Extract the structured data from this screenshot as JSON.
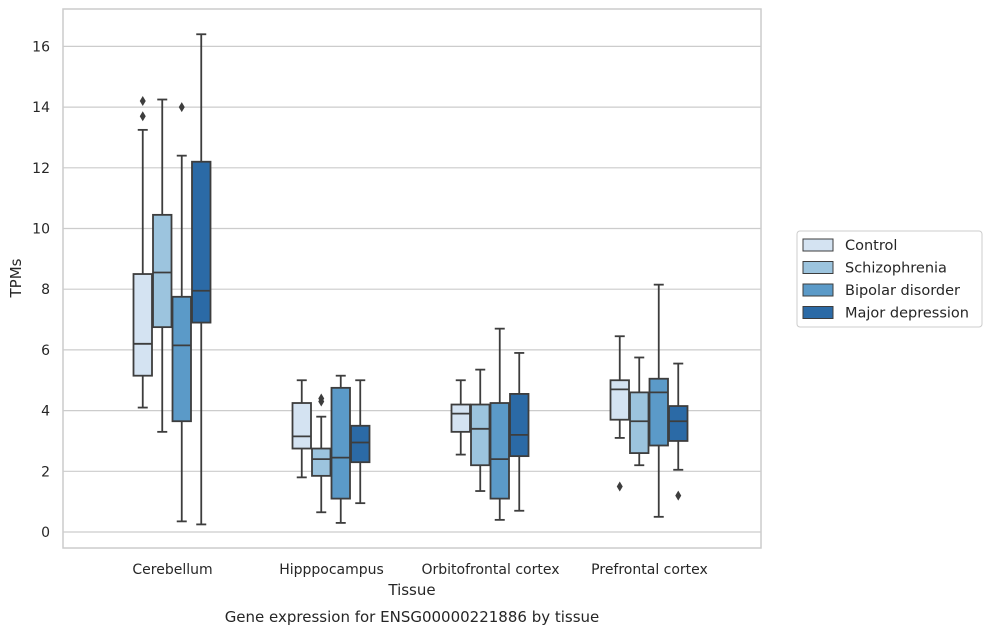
{
  "chart_data": {
    "type": "boxplot",
    "title": "",
    "xlabel": "Tissue",
    "ylabel": "TPMs",
    "caption": "Gene expression for ENSG00000221886 by tissue",
    "ylim": [
      -0.5,
      17.2
    ],
    "yticks": [
      0,
      2,
      4,
      6,
      8,
      10,
      12,
      14,
      16
    ],
    "grid": "horizontal",
    "legend_position": "right",
    "categories": [
      "Cerebellum",
      "Hipppocampus",
      "Orbitofrontal cortex",
      "Prefrontal cortex"
    ],
    "series": [
      {
        "name": "Control",
        "color": "#d4e3f2",
        "boxes": [
          {
            "whisker_low": 4.1,
            "q1": 5.15,
            "median": 6.2,
            "q3": 8.5,
            "whisker_high": 13.25,
            "outliers": [
              13.7,
              14.2
            ]
          },
          {
            "whisker_low": 1.8,
            "q1": 2.75,
            "median": 3.15,
            "q3": 4.25,
            "whisker_high": 5.0,
            "outliers": []
          },
          {
            "whisker_low": 2.55,
            "q1": 3.3,
            "median": 3.9,
            "q3": 4.2,
            "whisker_high": 5.0,
            "outliers": []
          },
          {
            "whisker_low": 3.1,
            "q1": 3.7,
            "median": 4.7,
            "q3": 5.0,
            "whisker_high": 6.45,
            "outliers": [
              1.5
            ]
          }
        ]
      },
      {
        "name": "Schizophrenia",
        "color": "#9cc4de",
        "boxes": [
          {
            "whisker_low": 3.3,
            "q1": 6.75,
            "median": 8.55,
            "q3": 10.45,
            "whisker_high": 14.25,
            "outliers": []
          },
          {
            "whisker_low": 0.65,
            "q1": 1.85,
            "median": 2.4,
            "q3": 2.75,
            "whisker_high": 3.8,
            "outliers": [
              4.3,
              4.4
            ]
          },
          {
            "whisker_low": 1.35,
            "q1": 2.2,
            "median": 3.4,
            "q3": 4.2,
            "whisker_high": 5.35,
            "outliers": []
          },
          {
            "whisker_low": 2.2,
            "q1": 2.6,
            "median": 3.65,
            "q3": 4.6,
            "whisker_high": 5.75,
            "outliers": []
          }
        ]
      },
      {
        "name": "Bipolar disorder",
        "color": "#5b9ac8",
        "boxes": [
          {
            "whisker_low": 0.35,
            "q1": 3.65,
            "median": 6.15,
            "q3": 7.75,
            "whisker_high": 12.4,
            "outliers": [
              14.0
            ]
          },
          {
            "whisker_low": 0.3,
            "q1": 1.1,
            "median": 2.45,
            "q3": 4.75,
            "whisker_high": 5.15,
            "outliers": []
          },
          {
            "whisker_low": 0.4,
            "q1": 1.1,
            "median": 2.4,
            "q3": 4.25,
            "whisker_high": 6.7,
            "outliers": []
          },
          {
            "whisker_low": 0.5,
            "q1": 2.85,
            "median": 4.6,
            "q3": 5.05,
            "whisker_high": 8.15,
            "outliers": []
          }
        ]
      },
      {
        "name": "Major depression",
        "color": "#2b6aa6",
        "boxes": [
          {
            "whisker_low": 0.25,
            "q1": 6.9,
            "median": 7.95,
            "q3": 12.2,
            "whisker_high": 16.4,
            "outliers": []
          },
          {
            "whisker_low": 0.95,
            "q1": 2.3,
            "median": 2.95,
            "q3": 3.5,
            "whisker_high": 5.0,
            "outliers": []
          },
          {
            "whisker_low": 0.7,
            "q1": 2.5,
            "median": 3.2,
            "q3": 4.55,
            "whisker_high": 5.9,
            "outliers": []
          },
          {
            "whisker_low": 2.05,
            "q1": 3.0,
            "median": 3.65,
            "q3": 4.15,
            "whisker_high": 5.55,
            "outliers": [
              1.2
            ]
          }
        ]
      }
    ]
  }
}
